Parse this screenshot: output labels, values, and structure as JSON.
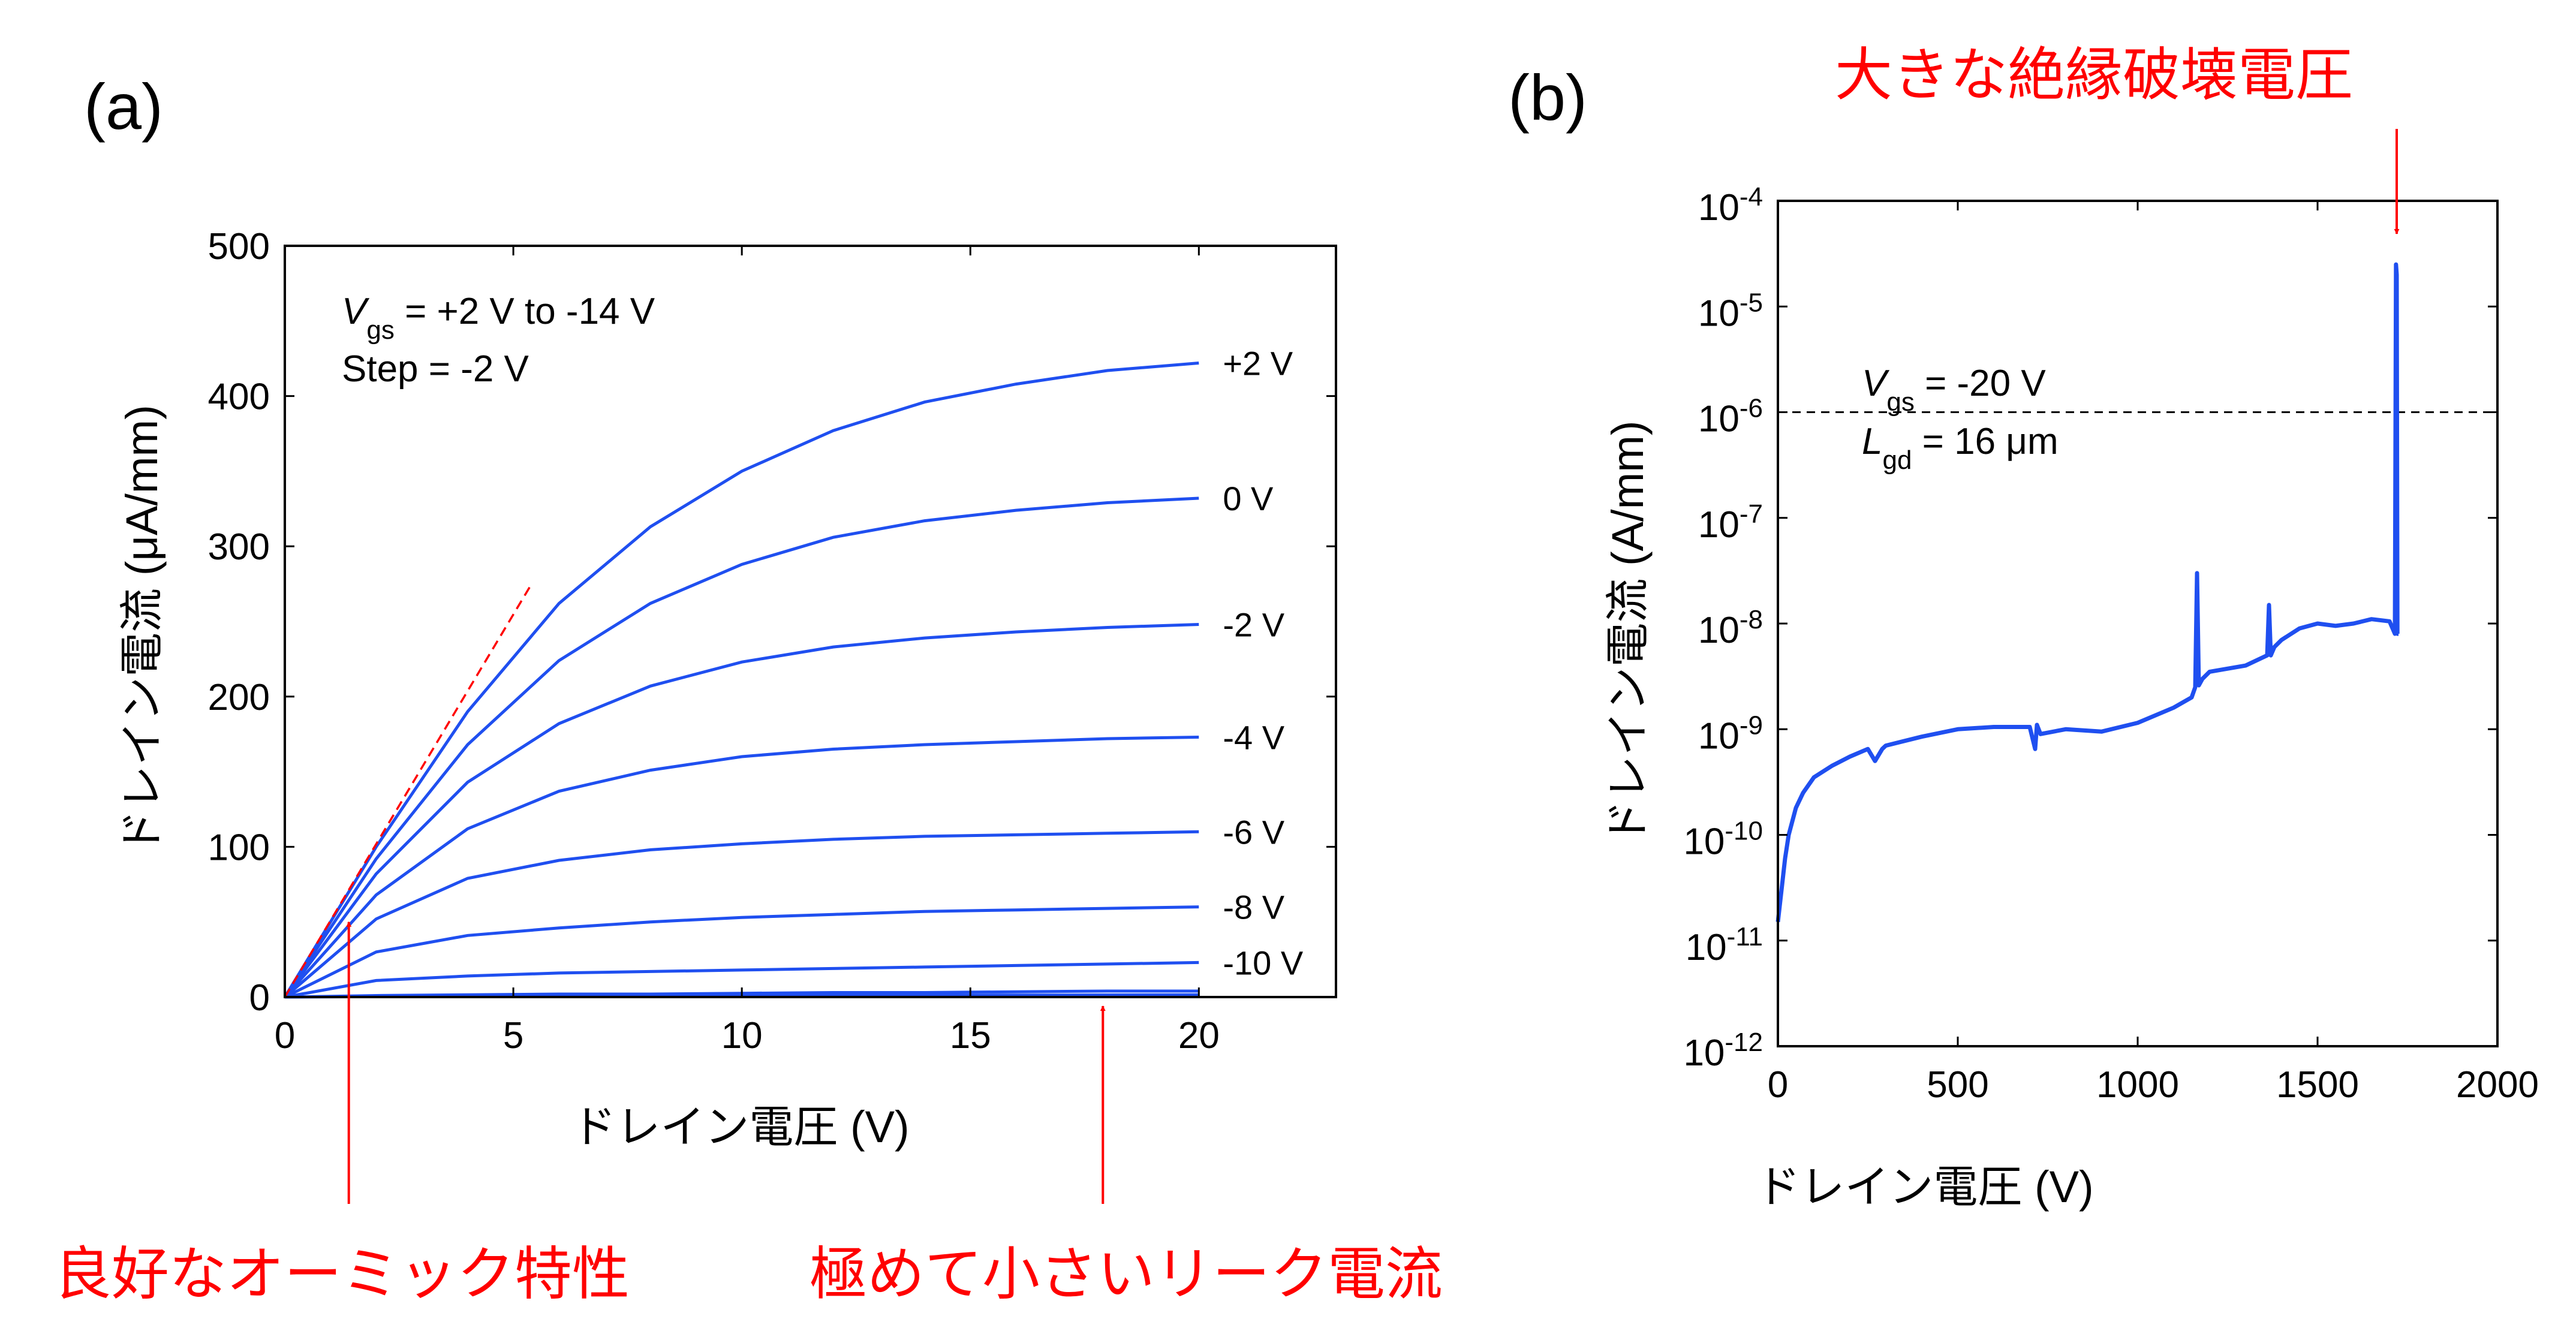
{
  "figure": {
    "panel_a_label": "(a)",
    "panel_b_label": "(b)",
    "annotations": {
      "ohmic": "良好なオーミック特性",
      "leakage": "極めて小さいリーク電流",
      "breakdown": "大きな絶縁破壊電圧"
    },
    "colors": {
      "curve": "#1f4ff0",
      "annotation": "#ff0000",
      "axis": "#000000"
    }
  },
  "chart_data": [
    {
      "id": "a",
      "type": "line",
      "xlabel": "ドレイン電圧 (V)",
      "ylabel": "ドレイン電流 (μA/mm)",
      "xlim": [
        0,
        23
      ],
      "ylim": [
        0,
        500
      ],
      "xticks": [
        0,
        5,
        10,
        15,
        20
      ],
      "yticks": [
        0,
        100,
        200,
        300,
        400,
        500
      ],
      "grid": false,
      "note_lines": [
        {
          "sym": "V",
          "sub": "gs",
          "rest": " = +2 V to -14 V"
        },
        {
          "sym": "",
          "sub": "",
          "rest": "Step = -2 V"
        }
      ],
      "series": [
        {
          "name": "+2 V",
          "x": [
            0,
            2,
            4,
            6,
            8,
            10,
            12,
            14,
            16,
            18,
            20
          ],
          "values": [
            0,
            100,
            190,
            262,
            313,
            350,
            377,
            396,
            408,
            417,
            422
          ]
        },
        {
          "name": "0 V",
          "x": [
            0,
            2,
            4,
            6,
            8,
            10,
            12,
            14,
            16,
            18,
            20
          ],
          "values": [
            0,
            92,
            168,
            224,
            262,
            288,
            306,
            317,
            324,
            329,
            332
          ]
        },
        {
          "name": "-2 V",
          "x": [
            0,
            2,
            4,
            6,
            8,
            10,
            12,
            14,
            16,
            18,
            20
          ],
          "values": [
            0,
            82,
            143,
            182,
            207,
            223,
            233,
            239,
            243,
            246,
            248
          ]
        },
        {
          "name": "-4 V",
          "x": [
            0,
            2,
            4,
            6,
            8,
            10,
            12,
            14,
            16,
            18,
            20
          ],
          "values": [
            0,
            68,
            112,
            137,
            151,
            160,
            165,
            168,
            170,
            172,
            173
          ]
        },
        {
          "name": "-6 V",
          "x": [
            0,
            2,
            4,
            6,
            8,
            10,
            12,
            14,
            16,
            18,
            20
          ],
          "values": [
            0,
            52,
            79,
            91,
            98,
            102,
            105,
            107,
            108,
            109,
            110
          ]
        },
        {
          "name": "-8 V",
          "x": [
            0,
            2,
            4,
            6,
            8,
            10,
            12,
            14,
            16,
            18,
            20
          ],
          "values": [
            0,
            30,
            41,
            46,
            50,
            53,
            55,
            57,
            58,
            59,
            60
          ]
        },
        {
          "name": "-10 V",
          "x": [
            0,
            2,
            4,
            6,
            8,
            10,
            12,
            14,
            16,
            18,
            20
          ],
          "values": [
            0,
            11,
            14,
            16,
            17,
            18,
            19,
            20,
            21,
            22,
            23
          ]
        },
        {
          "name": "",
          "x": [
            0,
            2,
            4,
            6,
            8,
            10,
            12,
            14,
            16,
            18,
            20
          ],
          "values": [
            0,
            1,
            1.5,
            2,
            2,
            2.5,
            3,
            3,
            3.5,
            4,
            4
          ]
        },
        {
          "name": "",
          "x": [
            0,
            2,
            4,
            6,
            8,
            10,
            12,
            14,
            16,
            18,
            20
          ],
          "values": [
            0,
            0.3,
            0.5,
            0.6,
            0.8,
            1,
            1.1,
            1.2,
            1.3,
            1.4,
            1.5
          ]
        }
      ],
      "reference_line": {
        "x": [
          0,
          5.4
        ],
        "values": [
          0,
          275
        ],
        "style": "dashed"
      },
      "arrows": [
        {
          "x": 1.4,
          "y": 50,
          "note": "ohmic"
        },
        {
          "x": 17.9,
          "y": -4,
          "note": "leakage"
        }
      ]
    },
    {
      "id": "b",
      "type": "line",
      "xlabel": "ドレイン電圧 (V)",
      "ylabel": "ドレイン電流 (A/mm)",
      "xlim": [
        0,
        2000
      ],
      "ylim": [
        1e-12,
        0.0001
      ],
      "yscale": "log",
      "xticks": [
        0,
        500,
        1000,
        1500,
        2000
      ],
      "yticks_exp": [
        -4,
        -5,
        -6,
        -7,
        -8,
        -9,
        -10,
        -11,
        -12
      ],
      "ytick_base": "10",
      "grid": false,
      "note_lines": [
        {
          "sym": "V",
          "sub": "gs",
          "rest": " = -20 V"
        },
        {
          "sym": "L",
          "sub": "gd",
          "rest": " = 16 μm"
        }
      ],
      "reference_line": {
        "y": 1e-06,
        "style": "dashed"
      },
      "series": [
        {
          "name": "",
          "x": [
            0,
            10,
            20,
            30,
            50,
            70,
            100,
            150,
            200,
            250,
            270,
            290,
            300,
            400,
            500,
            600,
            700,
            715,
            720,
            730,
            800,
            900,
            1000,
            1100,
            1150,
            1160,
            1165,
            1170,
            1180,
            1200,
            1300,
            1360,
            1365,
            1370,
            1380,
            1400,
            1450,
            1500,
            1550,
            1600,
            1650,
            1700,
            1715,
            1718,
            1720,
            1722,
            1725
          ],
          "values": [
            1.5e-11,
            3e-11,
            6e-11,
            1e-10,
            1.8e-10,
            2.5e-10,
            3.5e-10,
            4.5e-10,
            5.5e-10,
            6.5e-10,
            5e-10,
            6.5e-10,
            7e-10,
            8.5e-10,
            1e-09,
            1.05e-09,
            1.05e-09,
            6.5e-10,
            1.1e-09,
            9e-10,
            1e-09,
            9.5e-10,
            1.15e-09,
            1.6e-09,
            2e-09,
            2.5e-09,
            3e-08,
            2.6e-09,
            3e-09,
            3.5e-09,
            4e-09,
            5e-09,
            1.5e-08,
            5e-09,
            6e-09,
            7e-09,
            9e-09,
            1e-08,
            9.5e-09,
            1e-08,
            1.1e-08,
            1.05e-08,
            8e-09,
            2.5e-05,
            2e-05,
            8e-09,
            8e-09
          ]
        }
      ],
      "arrows": [
        {
          "x": 1720,
          "y": 5e-05,
          "note": "breakdown"
        }
      ]
    }
  ]
}
